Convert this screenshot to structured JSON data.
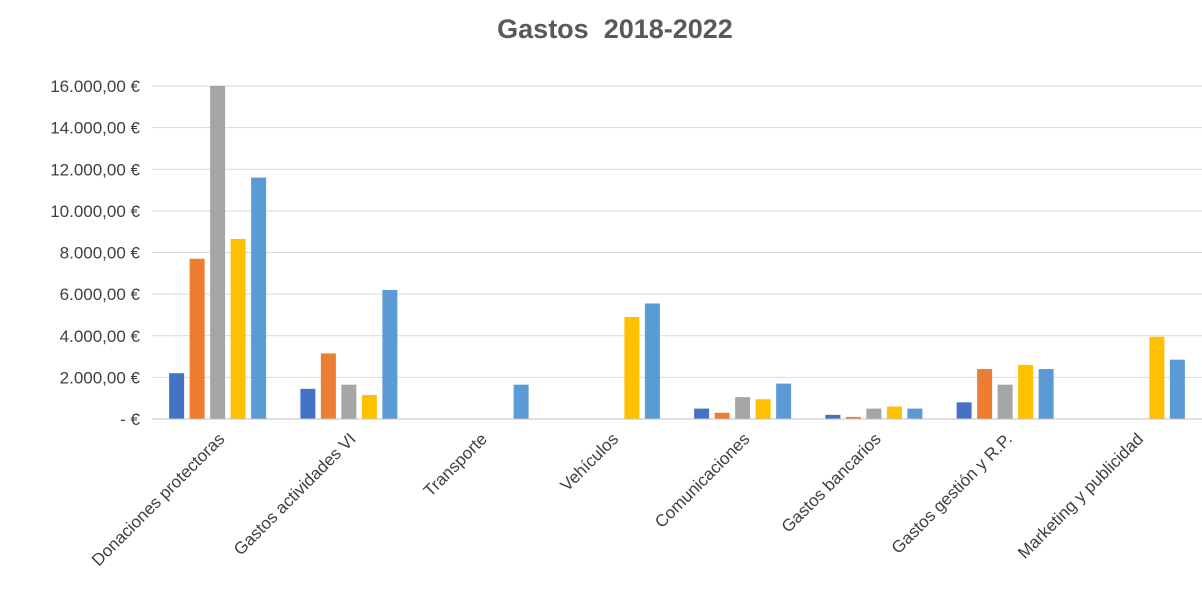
{
  "chart_data": {
    "type": "bar",
    "title": "Gastos  2018-2022",
    "xlabel": "",
    "ylabel": "",
    "ylim": [
      0,
      16000
    ],
    "y_ticks": [
      0,
      2000,
      4000,
      6000,
      8000,
      10000,
      12000,
      14000,
      16000
    ],
    "y_tick_labels": [
      "-  €",
      "2.000,00 €",
      "4.000,00 €",
      "6.000,00 €",
      "8.000,00 €",
      "10.000,00 €",
      "12.000,00 €",
      "14.000,00 €",
      "16.000,00 €"
    ],
    "grid": true,
    "legend": "none",
    "categories": [
      "Donaciones protectoras",
      "Gastos actividades VI",
      "Transporte",
      "Vehículos",
      "Comunicaciones",
      "Gastos bancarios",
      "Gastos gestión y R.P.",
      "Marketing y publicidad"
    ],
    "series": [
      {
        "color": "#4472c4",
        "values": [
          2200,
          1450,
          0,
          0,
          500,
          200,
          800,
          0
        ]
      },
      {
        "color": "#ed7d31",
        "values": [
          7700,
          3150,
          0,
          0,
          300,
          100,
          2400,
          0
        ]
      },
      {
        "color": "#a5a5a5",
        "values": [
          16000,
          1650,
          0,
          0,
          1050,
          500,
          1650,
          0
        ]
      },
      {
        "color": "#ffc000",
        "values": [
          8650,
          1150,
          0,
          4900,
          950,
          600,
          2600,
          3950
        ]
      },
      {
        "color": "#5b9bd5",
        "values": [
          11600,
          6200,
          1650,
          5550,
          1700,
          500,
          2400,
          2850
        ]
      }
    ]
  }
}
